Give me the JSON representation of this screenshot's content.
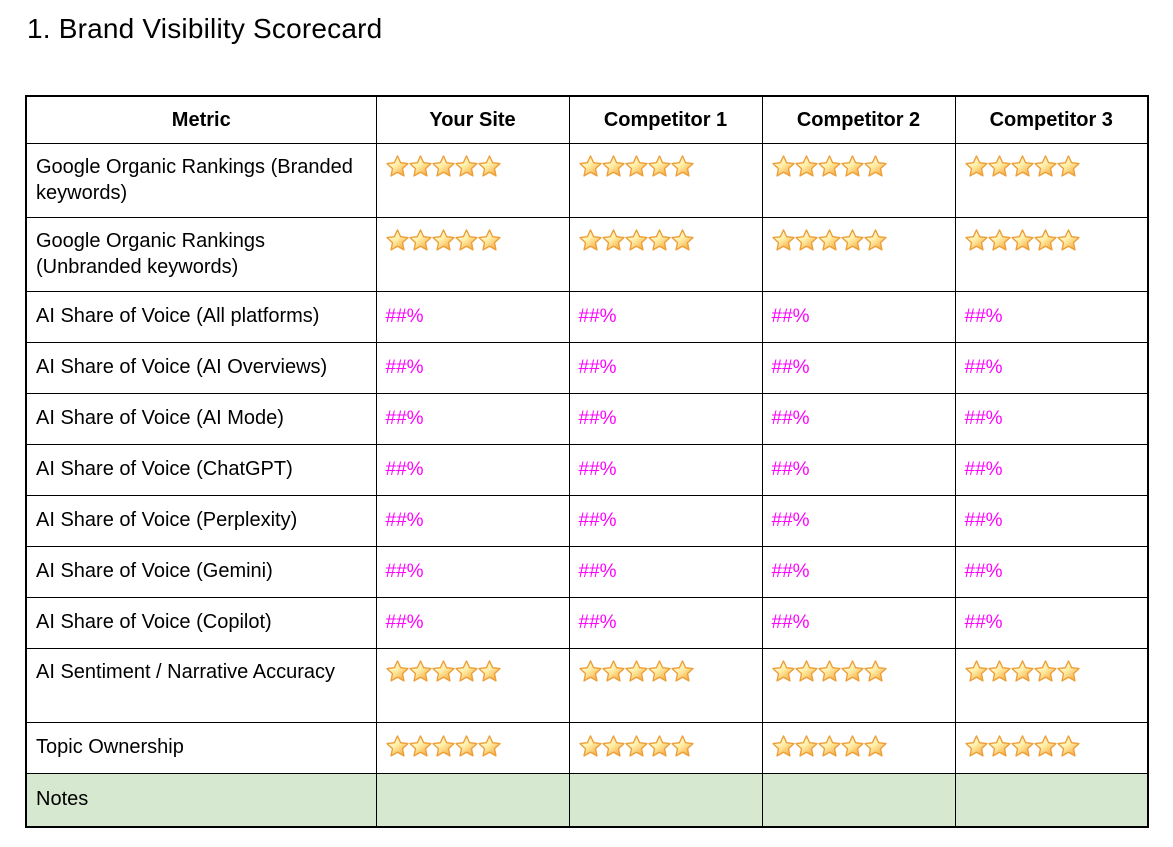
{
  "title": "1. Brand Visibility Scorecard",
  "colors": {
    "value_text": "#ff00ff",
    "notes_row_bg": "#d7e8d0",
    "table_border": "#000000",
    "star_fill_light": "#fffdf2",
    "star_fill_mid": "#ffefa8",
    "star_fill_dark": "#f6a63a",
    "star_stroke": "#ed9e37"
  },
  "table": {
    "headers": [
      "Metric",
      "Your Site",
      "Competitor 1",
      "Competitor 2",
      "Competitor 3"
    ],
    "rows": [
      {
        "metric": "Google Organic Rankings (Branded keywords)",
        "kind": "stars",
        "size": "tall",
        "values": [
          5,
          5,
          5,
          5
        ]
      },
      {
        "metric": "Google Organic Rankings (Unbranded keywords)",
        "kind": "stars",
        "size": "tall",
        "values": [
          5,
          5,
          5,
          5
        ]
      },
      {
        "metric": "AI Share of Voice (All platforms)",
        "kind": "percent",
        "size": "medium",
        "values": [
          "##%",
          "##%",
          "##%",
          "##%"
        ]
      },
      {
        "metric": "AI Share of Voice (AI Overviews)",
        "kind": "percent",
        "size": "medium",
        "values": [
          "##%",
          "##%",
          "##%",
          "##%"
        ]
      },
      {
        "metric": "AI Share of Voice (AI Mode)",
        "kind": "percent",
        "size": "medium",
        "values": [
          "##%",
          "##%",
          "##%",
          "##%"
        ]
      },
      {
        "metric": "AI Share of Voice (ChatGPT)",
        "kind": "percent",
        "size": "medium",
        "values": [
          "##%",
          "##%",
          "##%",
          "##%"
        ]
      },
      {
        "metric": "AI Share of Voice (Perplexity)",
        "kind": "percent",
        "size": "medium",
        "values": [
          "##%",
          "##%",
          "##%",
          "##%"
        ]
      },
      {
        "metric": "AI Share of Voice (Gemini)",
        "kind": "percent",
        "size": "medium",
        "values": [
          "##%",
          "##%",
          "##%",
          "##%"
        ]
      },
      {
        "metric": "AI Share of Voice (Copilot)",
        "kind": "percent",
        "size": "medium",
        "values": [
          "##%",
          "##%",
          "##%",
          "##%"
        ]
      },
      {
        "metric": "AI Sentiment / Narrative Accuracy",
        "kind": "stars",
        "size": "tall",
        "values": [
          5,
          5,
          5,
          5
        ]
      },
      {
        "metric": "Topic Ownership",
        "kind": "stars",
        "size": "medium",
        "values": [
          5,
          5,
          5,
          5
        ]
      },
      {
        "metric": "Notes",
        "kind": "notes",
        "size": "notes",
        "values": [
          "",
          "",
          "",
          ""
        ]
      }
    ]
  }
}
